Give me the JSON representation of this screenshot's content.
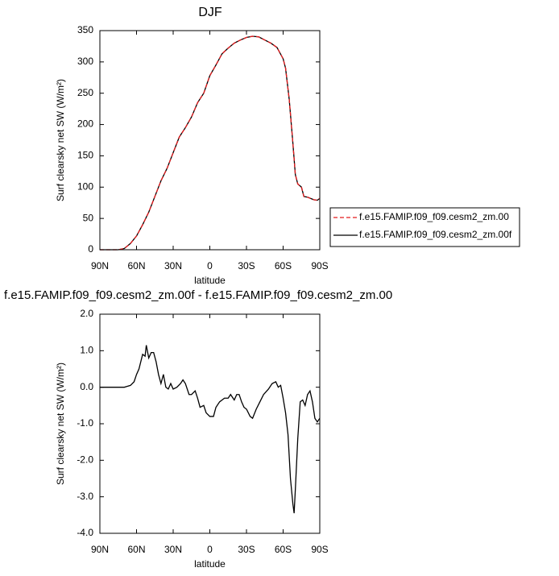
{
  "chart_data": [
    {
      "type": "line",
      "title": "DJF",
      "x_label": "latitude",
      "y_label": "Surf clearsky net SW (W/m²)",
      "xlim": [
        90,
        -90
      ],
      "xticks": [
        {
          "value": 90,
          "label": "90N"
        },
        {
          "value": 60,
          "label": "60N"
        },
        {
          "value": 30,
          "label": "30N"
        },
        0,
        {
          "value": -30,
          "label": "30S"
        },
        {
          "value": -60,
          "label": "60S"
        },
        {
          "value": -90,
          "label": "90S"
        }
      ],
      "ylim": [
        0,
        350
      ],
      "yticks": [
        0,
        50,
        100,
        150,
        200,
        250,
        300,
        350
      ],
      "legend": "right",
      "x": [
        90,
        85,
        80,
        75,
        70,
        65,
        60,
        55,
        50,
        45,
        40,
        35,
        30,
        25,
        20,
        15,
        10,
        5,
        0,
        -5,
        -10,
        -15,
        -20,
        -25,
        -30,
        -35,
        -40,
        -45,
        -50,
        -55,
        -60,
        -62,
        -65,
        -68,
        -70,
        -72,
        -75,
        -77,
        -80,
        -85,
        -88,
        -90
      ],
      "series": [
        {
          "name": "f.e15.FAMIP.f09_f09.cesm2_zm.00",
          "color": "#e41a1c",
          "dash": "dashed",
          "values": [
            0,
            0,
            0,
            0,
            2,
            10,
            22,
            40,
            60,
            85,
            110,
            130,
            155,
            180,
            195,
            212,
            235,
            250,
            278,
            295,
            313,
            322,
            330,
            335,
            339,
            341,
            340,
            335,
            330,
            323,
            305,
            290,
            240,
            170,
            120,
            105,
            100,
            85,
            84,
            80,
            79,
            82
          ]
        },
        {
          "name": "f.e15.FAMIP.f09_f09.cesm2_zm.00f",
          "color": "#000000",
          "dash": "solid",
          "values": [
            0,
            0,
            0,
            0,
            2,
            10,
            22,
            40,
            60,
            85,
            110,
            130,
            155,
            180,
            195,
            212,
            235,
            250,
            278,
            295,
            313,
            322,
            330,
            335,
            339,
            341,
            340,
            335,
            330,
            323,
            305,
            290,
            240,
            170,
            120,
            105,
            100,
            85,
            84,
            80,
            79,
            82
          ]
        }
      ]
    },
    {
      "type": "line",
      "title": "f.e15.FAMIP.f09_f09.cesm2_zm.00f - f.e15.FAMIP.f09_f09.cesm2_zm.00",
      "x_label": "latitude",
      "y_label": "Surf clearsky net SW (W/m²)",
      "xlim": [
        90,
        -90
      ],
      "xticks": [
        {
          "value": 90,
          "label": "90N"
        },
        {
          "value": 60,
          "label": "60N"
        },
        {
          "value": 30,
          "label": "30N"
        },
        0,
        {
          "value": -30,
          "label": "30S"
        },
        {
          "value": -60,
          "label": "60S"
        },
        {
          "value": -90,
          "label": "90S"
        }
      ],
      "ylim": [
        -4,
        2
      ],
      "yticks": [
        {
          "value": -4,
          "label": "-4.0"
        },
        {
          "value": -3,
          "label": "-3.0"
        },
        {
          "value": -2,
          "label": "-2.0"
        },
        {
          "value": -1,
          "label": "-1.0"
        },
        {
          "value": 0,
          "label": "0.0"
        },
        {
          "value": 1,
          "label": "1.0"
        },
        {
          "value": 2,
          "label": "2.0"
        }
      ],
      "x": [
        90,
        70,
        68,
        65,
        62,
        60,
        58,
        55,
        53,
        52,
        50,
        48,
        46,
        44,
        42,
        40,
        38,
        36,
        34,
        32,
        30,
        27,
        24,
        22,
        20,
        17,
        15,
        12,
        10,
        8,
        5,
        3,
        0,
        -3,
        -5,
        -8,
        -12,
        -15,
        -17,
        -20,
        -22,
        -24,
        -26,
        -28,
        -30,
        -33,
        -35,
        -38,
        -41,
        -44,
        -48,
        -51,
        -54,
        -56,
        -58,
        -60,
        -62,
        -64,
        -66,
        -68,
        -69,
        -70,
        -72,
        -74,
        -76,
        -78,
        -80,
        -82,
        -84,
        -86,
        -88,
        -90
      ],
      "series": [
        {
          "color": "#000000",
          "dash": "solid",
          "values": [
            0,
            0,
            0.02,
            0.05,
            0.15,
            0.35,
            0.5,
            0.9,
            0.85,
            1.15,
            0.8,
            0.95,
            0.95,
            0.7,
            0.35,
            0.1,
            0.35,
            0,
            -0.05,
            0.1,
            -0.05,
            0,
            0.1,
            0.2,
            0.1,
            -0.2,
            -0.2,
            -0.1,
            -0.3,
            -0.55,
            -0.5,
            -0.7,
            -0.8,
            -0.8,
            -0.55,
            -0.4,
            -0.3,
            -0.3,
            -0.2,
            -0.35,
            -0.2,
            -0.2,
            -0.4,
            -0.55,
            -0.6,
            -0.8,
            -0.85,
            -0.6,
            -0.4,
            -0.2,
            -0.05,
            0.1,
            0.15,
            0,
            0.05,
            -0.3,
            -0.7,
            -1.3,
            -2.5,
            -3.2,
            -3.45,
            -2.8,
            -1.4,
            -0.4,
            -0.35,
            -0.5,
            -0.2,
            -0.1,
            -0.4,
            -0.85,
            -0.95,
            -0.85
          ]
        }
      ]
    }
  ]
}
